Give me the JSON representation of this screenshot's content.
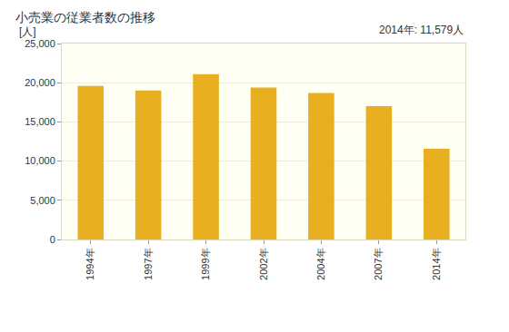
{
  "chart_data": {
    "type": "bar",
    "title": "小売業の従業者数の推移",
    "y_label": "[人]",
    "annotation": "2014年: 11,579人",
    "categories": [
      "1994年",
      "1997年",
      "1999年",
      "2002年",
      "2004年",
      "2007年",
      "2014年"
    ],
    "values": [
      19600,
      19000,
      21100,
      19400,
      18700,
      17000,
      11579
    ],
    "color": "#e8b020",
    "ylim": [
      0,
      25000
    ],
    "yticks": [
      0,
      {
        "value": 5000,
        "label": "5,000"
      },
      {
        "value": 10000,
        "label": "10,000"
      },
      {
        "value": 15000,
        "label": "15,000"
      },
      {
        "value": 20000,
        "label": "20,000"
      },
      {
        "value": 25000,
        "label": "25,000"
      }
    ],
    "grid": true
  }
}
